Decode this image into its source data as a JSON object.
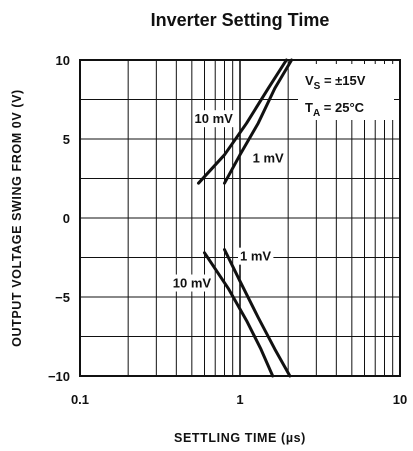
{
  "chart_data": {
    "type": "line",
    "title": "Inverter Setting Time",
    "xlabel": "SETTLING TIME (µs)",
    "ylabel": "OUTPUT VOLTAGE SWING FROM 0V (V)",
    "x_scale": "log",
    "xlim": [
      0.1,
      10
    ],
    "ylim": [
      -10,
      10
    ],
    "x_tick_labels": [
      {
        "value": 0.1,
        "label": "0.1"
      },
      {
        "value": 1,
        "label": "1"
      },
      {
        "value": 10,
        "label": "10"
      }
    ],
    "y_tick_labels": [
      {
        "value": 10,
        "label": "10"
      },
      {
        "value": 5,
        "label": "5"
      },
      {
        "value": 0,
        "label": "0"
      },
      {
        "value": -5,
        "label": "−5"
      },
      {
        "value": -10,
        "label": "−10"
      }
    ],
    "grid": true,
    "conditions": {
      "vs": {
        "main": "V",
        "sub": "S",
        "value": " = ±15V"
      },
      "ta": {
        "main": "T",
        "sub": "A",
        "value": " = 25°C"
      }
    },
    "series": [
      {
        "name": "10 mV",
        "x": [
          0.55,
          0.8,
          1.1,
          1.5,
          1.95
        ],
        "y": [
          2.2,
          4.0,
          6.0,
          8.2,
          10
        ]
      },
      {
        "name": "1 mV",
        "x": [
          0.8,
          1.0,
          1.3,
          1.65,
          2.1
        ],
        "y": [
          2.2,
          4.0,
          6.0,
          8.2,
          10
        ]
      },
      {
        "name": "10 mV",
        "x": [
          0.6,
          0.85,
          1.1,
          1.35,
          1.6
        ],
        "y": [
          -2.2,
          -4.5,
          -6.5,
          -8.3,
          -10
        ]
      },
      {
        "name": "1 mV",
        "x": [
          0.8,
          1.0,
          1.3,
          1.65,
          2.05
        ],
        "y": [
          -2.0,
          -4.0,
          -6.3,
          -8.3,
          -10
        ]
      }
    ],
    "annotations": [
      {
        "text": "10 mV",
        "x": 0.52,
        "y": 6.0
      },
      {
        "text": "1 mV",
        "x": 1.2,
        "y": 3.5
      },
      {
        "text": "1 mV",
        "x": 1.0,
        "y": -2.7
      },
      {
        "text": "10 mV",
        "x": 0.38,
        "y": -4.4
      }
    ]
  }
}
